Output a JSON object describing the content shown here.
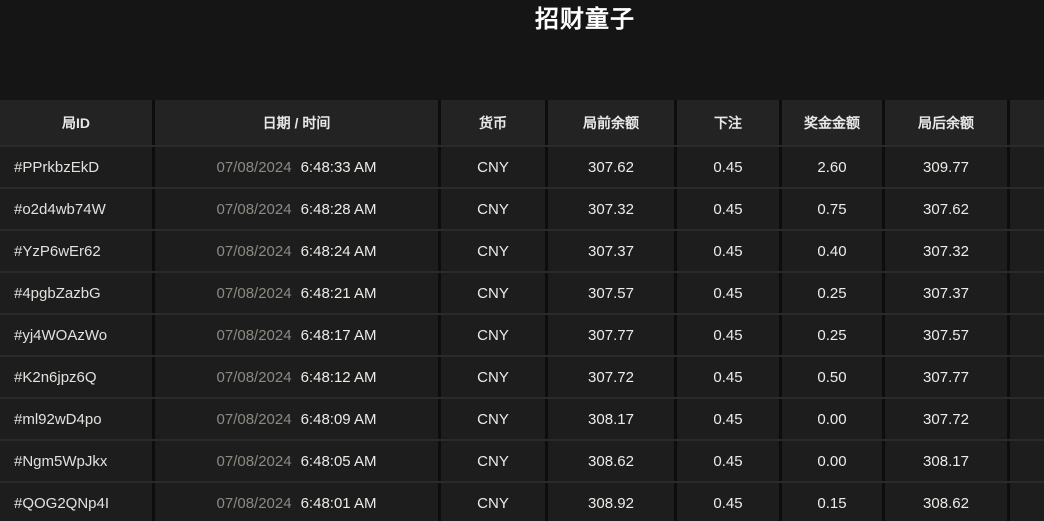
{
  "page": {
    "title": "招财童子"
  },
  "table": {
    "columns": [
      {
        "label": "局ID"
      },
      {
        "label": "日期 / 时间"
      },
      {
        "label": "货币"
      },
      {
        "label": "局前余额"
      },
      {
        "label": "下注"
      },
      {
        "label": "奖金金额"
      },
      {
        "label": "局后余额"
      },
      {
        "label": ""
      }
    ],
    "rows": [
      {
        "id": "#PPrkbzEkD",
        "date": "07/08/2024",
        "time": "6:48:33 AM",
        "currency": "CNY",
        "balance_before": "307.62",
        "bet": "0.45",
        "prize": "2.60",
        "balance_after": "309.77"
      },
      {
        "id": "#o2d4wb74W",
        "date": "07/08/2024",
        "time": "6:48:28 AM",
        "currency": "CNY",
        "balance_before": "307.32",
        "bet": "0.45",
        "prize": "0.75",
        "balance_after": "307.62"
      },
      {
        "id": "#YzP6wEr62",
        "date": "07/08/2024",
        "time": "6:48:24 AM",
        "currency": "CNY",
        "balance_before": "307.37",
        "bet": "0.45",
        "prize": "0.40",
        "balance_after": "307.32"
      },
      {
        "id": "#4pgbZazbG",
        "date": "07/08/2024",
        "time": "6:48:21 AM",
        "currency": "CNY",
        "balance_before": "307.57",
        "bet": "0.45",
        "prize": "0.25",
        "balance_after": "307.37"
      },
      {
        "id": "#yj4WOAzWo",
        "date": "07/08/2024",
        "time": "6:48:17 AM",
        "currency": "CNY",
        "balance_before": "307.77",
        "bet": "0.45",
        "prize": "0.25",
        "balance_after": "307.57"
      },
      {
        "id": "#K2n6jpz6Q",
        "date": "07/08/2024",
        "time": "6:48:12 AM",
        "currency": "CNY",
        "balance_before": "307.72",
        "bet": "0.45",
        "prize": "0.50",
        "balance_after": "307.77"
      },
      {
        "id": "#ml92wD4po",
        "date": "07/08/2024",
        "time": "6:48:09 AM",
        "currency": "CNY",
        "balance_before": "308.17",
        "bet": "0.45",
        "prize": "0.00",
        "balance_after": "307.72"
      },
      {
        "id": "#Ngm5WpJkx",
        "date": "07/08/2024",
        "time": "6:48:05 AM",
        "currency": "CNY",
        "balance_before": "308.62",
        "bet": "0.45",
        "prize": "0.00",
        "balance_after": "308.17"
      },
      {
        "id": "#QOG2QNp4I",
        "date": "07/08/2024",
        "time": "6:48:01 AM",
        "currency": "CNY",
        "balance_before": "308.92",
        "bet": "0.45",
        "prize": "0.15",
        "balance_after": "308.62"
      }
    ]
  },
  "colors": {
    "page_background": "#151515",
    "header_cell": "#232323",
    "row_cell": "#1d1d1d",
    "column_gap": "#0d0d0d",
    "row_separator": "#2a2a2a",
    "date_dim_text": "#8d8a83",
    "primary_text": "#edece9"
  }
}
